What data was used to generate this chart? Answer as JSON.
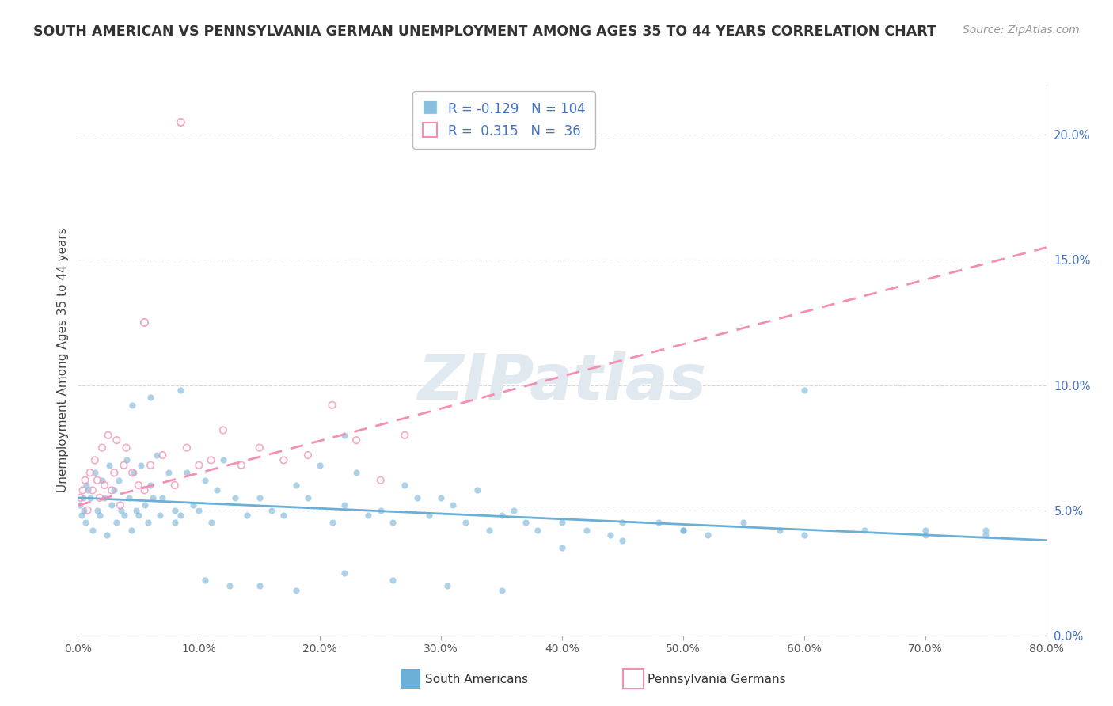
{
  "title": "SOUTH AMERICAN VS PENNSYLVANIA GERMAN UNEMPLOYMENT AMONG AGES 35 TO 44 YEARS CORRELATION CHART",
  "source": "Source: ZipAtlas.com",
  "xlabel_vals": [
    0,
    10,
    20,
    30,
    40,
    50,
    60,
    70,
    80
  ],
  "xlabel_ticks": [
    "0.0%",
    "10.0%",
    "20.0%",
    "30.0%",
    "40.0%",
    "50.0%",
    "60.0%",
    "70.0%",
    "80.0%"
  ],
  "ylabel_vals": [
    0,
    5,
    10,
    15,
    20
  ],
  "ylabel_ticks": [
    "0.0%",
    "5.0%",
    "10.0%",
    "15.0%",
    "20.0%"
  ],
  "ylabel_label": "Unemployment Among Ages 35 to 44 years",
  "x_min": 0,
  "x_max": 80,
  "y_min": 0,
  "y_max": 22,
  "blue_R": -0.129,
  "blue_N": 104,
  "pink_R": 0.315,
  "pink_N": 36,
  "blue_color": "#6baed6",
  "pink_color": "#f48fb1",
  "watermark": "ZIPatlas",
  "legend_label_blue": "South Americans",
  "legend_label_pink": "Pennsylvania Germans",
  "blue_trend_x": [
    0,
    80
  ],
  "blue_trend_y": [
    5.5,
    3.8
  ],
  "pink_trend_x": [
    0,
    80
  ],
  "pink_trend_y": [
    5.2,
    15.5
  ],
  "blue_x": [
    0.2,
    0.3,
    0.4,
    0.5,
    0.6,
    0.7,
    0.8,
    1.0,
    1.2,
    1.4,
    1.6,
    1.8,
    2.0,
    2.2,
    2.4,
    2.6,
    2.8,
    3.0,
    3.2,
    3.4,
    3.6,
    3.8,
    4.0,
    4.2,
    4.4,
    4.6,
    4.8,
    5.0,
    5.2,
    5.5,
    5.8,
    6.0,
    6.2,
    6.5,
    6.8,
    7.0,
    7.5,
    8.0,
    8.5,
    9.0,
    9.5,
    10.0,
    10.5,
    11.0,
    11.5,
    12.0,
    13.0,
    14.0,
    15.0,
    16.0,
    17.0,
    18.0,
    19.0,
    20.0,
    21.0,
    22.0,
    23.0,
    24.0,
    25.0,
    26.0,
    27.0,
    28.0,
    29.0,
    30.0,
    31.0,
    32.0,
    33.0,
    34.0,
    35.0,
    36.0,
    37.0,
    38.0,
    40.0,
    42.0,
    44.0,
    45.0,
    48.0,
    50.0,
    52.0,
    55.0,
    58.0,
    60.0,
    65.0,
    70.0,
    75.0,
    4.5,
    6.0,
    8.5,
    10.5,
    12.5,
    15.0,
    18.0,
    22.0,
    26.0,
    30.5,
    35.0,
    40.0,
    45.0,
    50.0,
    60.0,
    70.0,
    75.0,
    8.0,
    22.0
  ],
  "blue_y": [
    5.2,
    4.8,
    5.5,
    5.0,
    4.5,
    6.0,
    5.8,
    5.5,
    4.2,
    6.5,
    5.0,
    4.8,
    6.2,
    5.5,
    4.0,
    6.8,
    5.2,
    5.8,
    4.5,
    6.2,
    5.0,
    4.8,
    7.0,
    5.5,
    4.2,
    6.5,
    5.0,
    4.8,
    6.8,
    5.2,
    4.5,
    6.0,
    5.5,
    7.2,
    4.8,
    5.5,
    6.5,
    5.0,
    4.8,
    6.5,
    5.2,
    5.0,
    6.2,
    4.5,
    5.8,
    7.0,
    5.5,
    4.8,
    5.5,
    5.0,
    4.8,
    6.0,
    5.5,
    6.8,
    4.5,
    5.2,
    6.5,
    4.8,
    5.0,
    4.5,
    6.0,
    5.5,
    4.8,
    5.5,
    5.2,
    4.5,
    5.8,
    4.2,
    4.8,
    5.0,
    4.5,
    4.2,
    4.5,
    4.2,
    4.0,
    3.8,
    4.5,
    4.2,
    4.0,
    4.5,
    4.2,
    4.0,
    4.2,
    4.0,
    4.2,
    9.2,
    9.5,
    9.8,
    2.2,
    2.0,
    2.0,
    1.8,
    2.5,
    2.2,
    2.0,
    1.8,
    3.5,
    4.5,
    4.2,
    9.8,
    4.2,
    4.0,
    4.5,
    8.0
  ],
  "pink_x": [
    0.2,
    0.4,
    0.6,
    0.8,
    1.0,
    1.2,
    1.4,
    1.6,
    1.8,
    2.0,
    2.2,
    2.5,
    2.8,
    3.0,
    3.2,
    3.5,
    3.8,
    4.0,
    4.5,
    5.0,
    5.5,
    6.0,
    7.0,
    8.0,
    9.0,
    10.0,
    11.0,
    12.0,
    13.5,
    15.0,
    17.0,
    19.0,
    21.0,
    23.0,
    25.0,
    27.0
  ],
  "pink_y": [
    5.5,
    5.8,
    6.2,
    5.0,
    6.5,
    5.8,
    7.0,
    6.2,
    5.5,
    7.5,
    6.0,
    8.0,
    5.8,
    6.5,
    7.8,
    5.2,
    6.8,
    7.5,
    6.5,
    6.0,
    5.8,
    6.8,
    7.2,
    6.0,
    7.5,
    6.8,
    7.0,
    8.2,
    6.8,
    7.5,
    7.0,
    7.2,
    9.2,
    7.8,
    6.2,
    8.0
  ],
  "pink_outlier1_x": 8.5,
  "pink_outlier1_y": 20.5,
  "pink_outlier2_x": 5.5,
  "pink_outlier2_y": 12.5
}
